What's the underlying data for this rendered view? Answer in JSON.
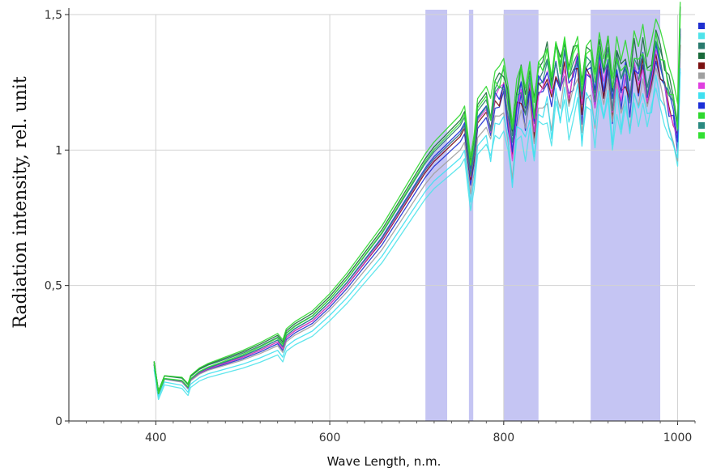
{
  "chart_data": {
    "type": "line",
    "xlabel": "Wave Length, n.m.",
    "ylabel": "Radiation intensity, rel. unit",
    "xlim": [
      300,
      1020
    ],
    "ylim": [
      0,
      1.5
    ],
    "x_ticks": [
      400,
      600,
      800,
      1000
    ],
    "x_tick_labels": [
      "400",
      "600",
      "800",
      "1000"
    ],
    "y_ticks": [
      0,
      0.5,
      1,
      1.5
    ],
    "y_tick_labels": [
      "0",
      "0,5",
      "1",
      "1,5"
    ],
    "grid": true,
    "highlight_bands": [
      {
        "from": 710,
        "to": 735,
        "color": "#c5c5f3"
      },
      {
        "from": 760,
        "to": 765,
        "color": "#c5c5f3"
      },
      {
        "from": 800,
        "to": 840,
        "color": "#c5c5f3"
      },
      {
        "from": 900,
        "to": 980,
        "color": "#c5c5f3"
      }
    ],
    "legend_position": "right",
    "base_curve": {
      "x": [
        398,
        403,
        410,
        420,
        430,
        437,
        440,
        450,
        460,
        480,
        500,
        520,
        540,
        546,
        550,
        560,
        580,
        600,
        620,
        640,
        660,
        680,
        690,
        700,
        710,
        720,
        730,
        740,
        750,
        755,
        760,
        762,
        766,
        770,
        780,
        785,
        790,
        795,
        800,
        805,
        810,
        815,
        820,
        825,
        830,
        835,
        840,
        845,
        850,
        855,
        860,
        865,
        870,
        875,
        880,
        885,
        890,
        895,
        900,
        905,
        910,
        915,
        920,
        925,
        930,
        935,
        940,
        945,
        950,
        955,
        960,
        965,
        970,
        975,
        980,
        985,
        990,
        995,
        1000,
        1003
      ],
      "y": [
        0.21,
        0.1,
        0.155,
        0.15,
        0.145,
        0.12,
        0.15,
        0.175,
        0.19,
        0.21,
        0.23,
        0.255,
        0.285,
        0.26,
        0.3,
        0.325,
        0.36,
        0.42,
        0.49,
        0.57,
        0.65,
        0.75,
        0.8,
        0.85,
        0.9,
        0.94,
        0.97,
        1.0,
        1.03,
        1.06,
        0.92,
        0.87,
        0.95,
        1.08,
        1.12,
        1.05,
        1.15,
        1.17,
        1.2,
        1.1,
        0.96,
        1.13,
        1.18,
        1.1,
        1.2,
        1.05,
        1.2,
        1.22,
        1.25,
        1.15,
        1.28,
        1.2,
        1.3,
        1.18,
        1.25,
        1.3,
        1.12,
        1.26,
        1.28,
        1.15,
        1.3,
        1.2,
        1.28,
        1.12,
        1.27,
        1.18,
        1.25,
        1.15,
        1.28,
        1.22,
        1.3,
        1.18,
        1.24,
        1.32,
        1.28,
        1.22,
        1.15,
        1.1,
        1.02,
        1.4
      ]
    },
    "series": [
      {
        "color": "#1f2fd0",
        "offsets": [
          0.0,
          0.0,
          0.0,
          0.0,
          0.0
        ]
      },
      {
        "color": "#4fe3ea",
        "offsets": [
          -0.02,
          -0.05,
          -0.09,
          -0.12,
          -0.1
        ]
      },
      {
        "color": "#2a7a6e",
        "offsets": [
          0.01,
          0.03,
          0.06,
          0.08,
          0.06
        ]
      },
      {
        "color": "#1a6a3a",
        "offsets": [
          0.01,
          0.04,
          0.08,
          0.12,
          0.1
        ]
      },
      {
        "color": "#7a1010",
        "offsets": [
          0.0,
          0.01,
          0.02,
          0.02,
          0.01
        ]
      },
      {
        "color": "#a0a0a0",
        "offsets": [
          0.0,
          -0.01,
          -0.03,
          -0.05,
          -0.04
        ]
      },
      {
        "color": "#e040e0",
        "offsets": [
          0.0,
          0.01,
          0.03,
          0.03,
          0.02
        ]
      },
      {
        "color": "#3fe0f0",
        "offsets": [
          -0.01,
          -0.03,
          -0.06,
          -0.08,
          -0.07
        ]
      },
      {
        "color": "#1c2fd8",
        "offsets": [
          0.0,
          0.02,
          0.04,
          0.05,
          0.04
        ]
      },
      {
        "color": "#2fd82f",
        "offsets": [
          0.01,
          0.05,
          0.1,
          0.15,
          0.13
        ]
      },
      {
        "color": "#2a8a80",
        "offsets": [
          0.0,
          0.02,
          0.03,
          0.06,
          0.05
        ]
      },
      {
        "color": "#33e033",
        "offsets": [
          0.0,
          0.03,
          0.07,
          0.1,
          0.08
        ]
      }
    ]
  }
}
